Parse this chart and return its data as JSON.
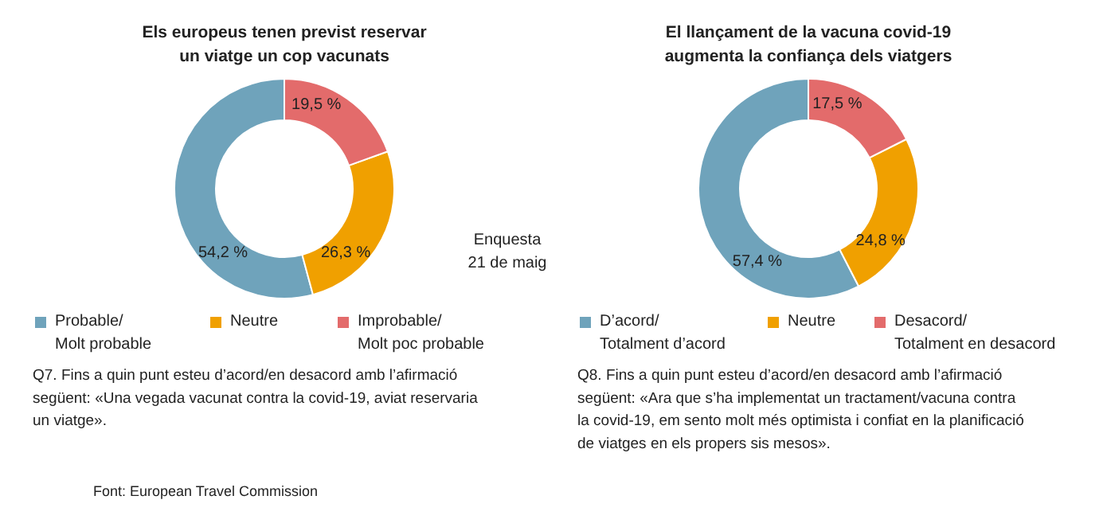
{
  "chart_data": [
    {
      "type": "donut",
      "title": "Els europeus tenen previst reservar\nun viatge un cop vacunats",
      "categories": [
        "Probable/\nMolt probable",
        "Neutre",
        "Improbable/\nMolt poc probable"
      ],
      "values": [
        54.2,
        26.3,
        19.5
      ],
      "colors": [
        "#6fa3bb",
        "#f0a000",
        "#e36b6b"
      ],
      "value_labels": [
        "54,2 %",
        "26,3 %",
        "19,5 %"
      ],
      "legend": "bottom",
      "annotations": [
        "Q7. Fins a quin punt esteu d’acord/en desacord amb l’afirmació\nsegüent: «Una vegada vacunat contra la covid-19, aviat reservaria\nun viatge».",
        "Enquesta\n21 de maig",
        "Font: European Travel Commission"
      ]
    },
    {
      "type": "donut",
      "title": "El llançament de la vacuna covid-19\naugmenta la confiança dels viatgers",
      "categories": [
        "D’acord/\nTotalment d’acord",
        "Neutre",
        "Desacord/\nTotalment en desacord"
      ],
      "values": [
        57.4,
        24.8,
        17.5
      ],
      "colors": [
        "#6fa3bb",
        "#f0a000",
        "#e36b6b"
      ],
      "value_labels": [
        "57,4 %",
        "24,8 %",
        "17,5 %"
      ],
      "legend": "bottom",
      "annotations": [
        "Q8. Fins a quin punt esteu d’acord/en desacord amb l’afirmació\nsegüent: «Ara que s’ha implementat un tractament/vacuna contra\nla covid-19, em sento molt més optimista i confiat en la planificació\nde viatges en els propers sis mesos»."
      ]
    }
  ]
}
